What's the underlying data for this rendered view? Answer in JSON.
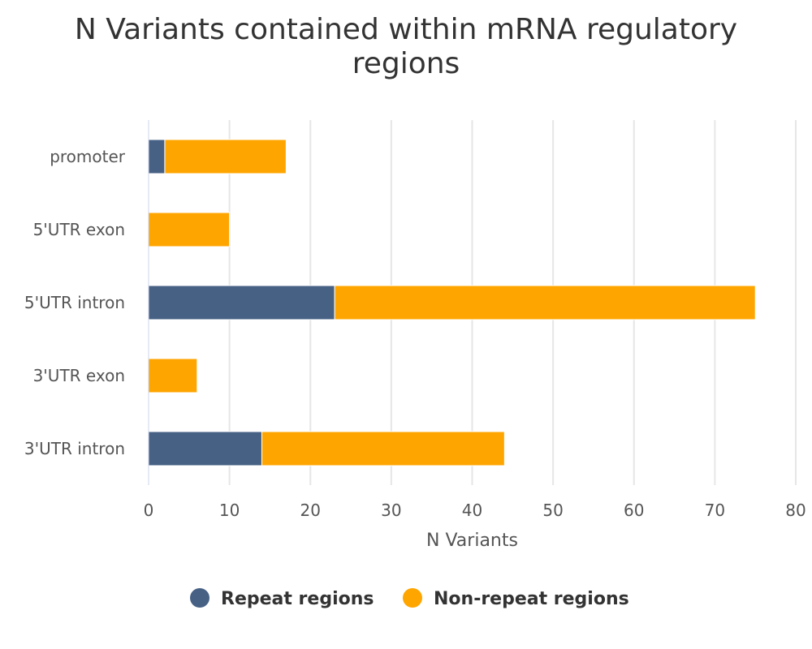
{
  "chart_data": {
    "type": "bar",
    "orientation": "horizontal",
    "stacked": true,
    "title_lines": [
      "N Variants contained within mRNA regulatory",
      "regions"
    ],
    "xlabel": "N Variants",
    "ylabel": "",
    "xlim": [
      0,
      80
    ],
    "ticks": [
      0,
      10,
      20,
      30,
      40,
      50,
      60,
      70,
      80
    ],
    "grid": true,
    "legend_position": "bottom-center",
    "categories": [
      "promoter",
      "5'UTR exon",
      "5'UTR intron",
      "3'UTR exon",
      "3'UTR intron"
    ],
    "series": [
      {
        "name": "Repeat regions",
        "color": "#476185",
        "values": [
          2,
          0,
          23,
          0,
          14
        ]
      },
      {
        "name": "Non-repeat regions",
        "color": "#FFA500",
        "values": [
          15,
          10,
          52,
          6,
          30
        ]
      }
    ]
  }
}
